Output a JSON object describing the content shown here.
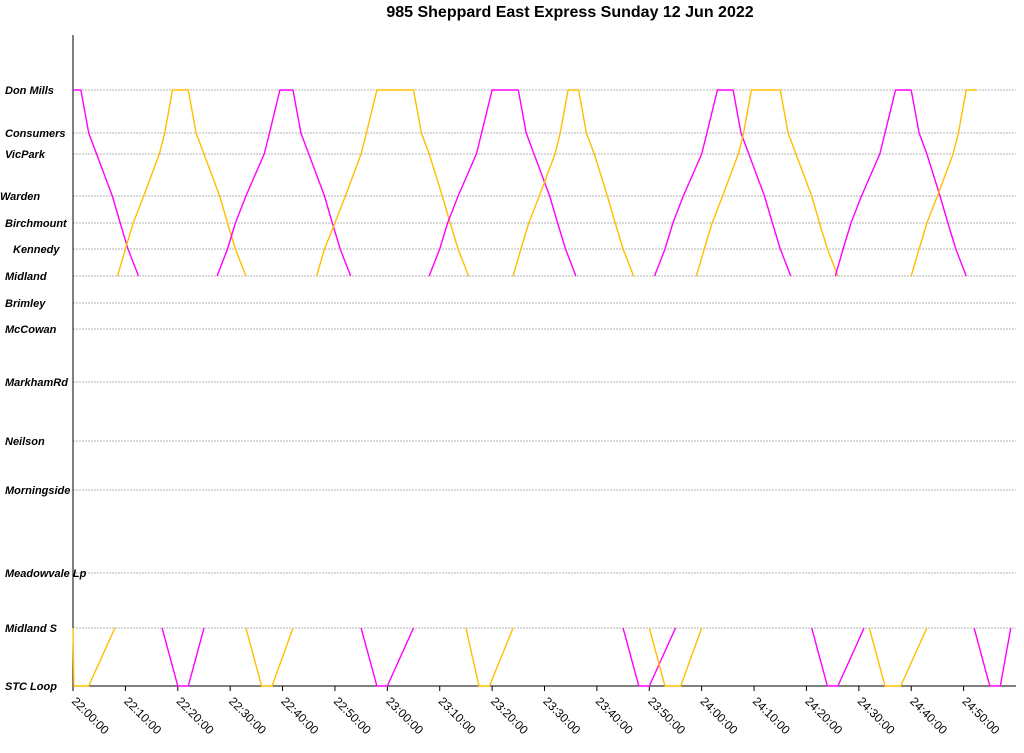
{
  "chart_data": {
    "type": "line",
    "title": "985 Sheppard East Express Sunday 12 Jun 2022",
    "xlabel": "",
    "ylabel": "",
    "x_range": [
      "22:00:00",
      "25:00:00"
    ],
    "x_ticks": [
      "22:00:00",
      "22:10:00",
      "22:20:00",
      "22:30:00",
      "22:40:00",
      "22:50:00",
      "23:00:00",
      "23:10:00",
      "23:20:00",
      "23:30:00",
      "23:40:00",
      "23:50:00",
      "24:00:00",
      "24:10:00",
      "24:20:00",
      "24:30:00",
      "24:40:00",
      "24:50:00"
    ],
    "stops": [
      "Don Mills",
      "Consumers",
      "VicPark",
      "Warden",
      "Birchmount",
      "Kennedy",
      "Midland",
      "Brimley",
      "McCowan",
      "MarkhamRd",
      "Neilson",
      "Morningside",
      "Meadowvale Lp",
      "Midland S",
      "STC Loop"
    ],
    "grid": true,
    "legend": "none",
    "colors": {
      "westbound": "#ff00ff",
      "eastbound": "#ffbf00"
    },
    "upper_segments": [
      {
        "color": "westbound",
        "points": [
          [
            "22:00:00",
            "Don Mills"
          ],
          [
            "22:01:30",
            "Don Mills"
          ],
          [
            "22:03:00",
            "Consumers"
          ],
          [
            "22:04:30",
            "VicPark"
          ],
          [
            "22:07:30",
            "Warden"
          ],
          [
            "22:09:00",
            "Birchmount"
          ],
          [
            "22:10:30",
            "Kennedy"
          ],
          [
            "22:12:30",
            "Midland"
          ]
        ]
      },
      {
        "color": "eastbound",
        "points": [
          [
            "22:08:30",
            "Midland"
          ],
          [
            "22:10:00",
            "Kennedy"
          ],
          [
            "22:11:30",
            "Birchmount"
          ],
          [
            "22:13:30",
            "Warden"
          ],
          [
            "22:16:30",
            "VicPark"
          ],
          [
            "22:17:30",
            "Consumers"
          ],
          [
            "22:19:00",
            "Don Mills"
          ],
          [
            "22:22:00",
            "Don Mills"
          ]
        ]
      },
      {
        "color": "eastbound",
        "points": [
          [
            "22:22:00",
            "Don Mills"
          ],
          [
            "22:23:30",
            "Consumers"
          ],
          [
            "22:25:00",
            "VicPark"
          ],
          [
            "22:28:00",
            "Warden"
          ],
          [
            "22:29:30",
            "Birchmount"
          ],
          [
            "22:31:00",
            "Kennedy"
          ],
          [
            "22:33:00",
            "Midland"
          ]
        ]
      },
      {
        "color": "westbound",
        "points": [
          [
            "22:27:30",
            "Midland"
          ],
          [
            "22:29:30",
            "Kennedy"
          ],
          [
            "22:31:00",
            "Birchmount"
          ],
          [
            "22:33:00",
            "Warden"
          ],
          [
            "22:36:30",
            "VicPark"
          ],
          [
            "22:37:30",
            "Consumers"
          ],
          [
            "22:39:30",
            "Don Mills"
          ],
          [
            "22:42:00",
            "Don Mills"
          ]
        ]
      },
      {
        "color": "westbound",
        "points": [
          [
            "22:42:00",
            "Don Mills"
          ],
          [
            "22:43:30",
            "Consumers"
          ],
          [
            "22:45:00",
            "VicPark"
          ],
          [
            "22:48:00",
            "Warden"
          ],
          [
            "22:49:30",
            "Birchmount"
          ],
          [
            "22:51:00",
            "Kennedy"
          ],
          [
            "22:53:00",
            "Midland"
          ]
        ]
      },
      {
        "color": "eastbound",
        "points": [
          [
            "22:46:30",
            "Midland"
          ],
          [
            "22:48:00",
            "Kennedy"
          ],
          [
            "22:50:00",
            "Birchmount"
          ],
          [
            "22:52:00",
            "Warden"
          ],
          [
            "22:55:00",
            "VicPark"
          ],
          [
            "22:56:00",
            "Consumers"
          ],
          [
            "22:58:00",
            "Don Mills"
          ],
          [
            "23:05:00",
            "Don Mills"
          ]
        ]
      },
      {
        "color": "eastbound",
        "points": [
          [
            "23:05:00",
            "Don Mills"
          ],
          [
            "23:06:30",
            "Consumers"
          ],
          [
            "23:08:00",
            "VicPark"
          ],
          [
            "23:10:30",
            "Warden"
          ],
          [
            "23:12:00",
            "Birchmount"
          ],
          [
            "23:13:30",
            "Kennedy"
          ],
          [
            "23:15:30",
            "Midland"
          ]
        ]
      },
      {
        "color": "westbound",
        "points": [
          [
            "23:08:00",
            "Midland"
          ],
          [
            "23:10:00",
            "Kennedy"
          ],
          [
            "23:11:30",
            "Birchmount"
          ],
          [
            "23:13:30",
            "Warden"
          ],
          [
            "23:17:00",
            "VicPark"
          ],
          [
            "23:18:00",
            "Consumers"
          ],
          [
            "23:20:00",
            "Don Mills"
          ],
          [
            "23:25:00",
            "Don Mills"
          ]
        ]
      },
      {
        "color": "westbound",
        "points": [
          [
            "23:25:00",
            "Don Mills"
          ],
          [
            "23:26:30",
            "Consumers"
          ],
          [
            "23:28:00",
            "VicPark"
          ],
          [
            "23:31:00",
            "Warden"
          ],
          [
            "23:32:30",
            "Birchmount"
          ],
          [
            "23:34:00",
            "Kennedy"
          ],
          [
            "23:36:00",
            "Midland"
          ]
        ]
      },
      {
        "color": "eastbound",
        "points": [
          [
            "23:24:00",
            "Midland"
          ],
          [
            "23:25:30",
            "Kennedy"
          ],
          [
            "23:27:00",
            "Birchmount"
          ],
          [
            "23:29:00",
            "Warden"
          ],
          [
            "23:32:00",
            "VicPark"
          ],
          [
            "23:33:00",
            "Consumers"
          ],
          [
            "23:34:30",
            "Don Mills"
          ],
          [
            "23:36:30",
            "Don Mills"
          ]
        ]
      },
      {
        "color": "eastbound",
        "points": [
          [
            "23:36:30",
            "Don Mills"
          ],
          [
            "23:38:00",
            "Consumers"
          ],
          [
            "23:39:30",
            "VicPark"
          ],
          [
            "23:42:00",
            "Warden"
          ],
          [
            "23:43:30",
            "Birchmount"
          ],
          [
            "23:45:00",
            "Kennedy"
          ],
          [
            "23:47:00",
            "Midland"
          ]
        ]
      },
      {
        "color": "westbound",
        "points": [
          [
            "23:51:00",
            "Midland"
          ],
          [
            "23:53:00",
            "Kennedy"
          ],
          [
            "23:54:30",
            "Birchmount"
          ],
          [
            "23:56:30",
            "Warden"
          ],
          [
            "24:00:00",
            "VicPark"
          ],
          [
            "24:01:00",
            "Consumers"
          ],
          [
            "24:03:00",
            "Don Mills"
          ],
          [
            "24:06:00",
            "Don Mills"
          ]
        ]
      },
      {
        "color": "westbound",
        "points": [
          [
            "24:06:00",
            "Don Mills"
          ],
          [
            "24:07:30",
            "Consumers"
          ],
          [
            "24:09:00",
            "VicPark"
          ],
          [
            "24:12:00",
            "Warden"
          ],
          [
            "24:13:30",
            "Birchmount"
          ],
          [
            "24:15:00",
            "Kennedy"
          ],
          [
            "24:17:00",
            "Midland"
          ]
        ]
      },
      {
        "color": "eastbound",
        "points": [
          [
            "23:59:00",
            "Midland"
          ],
          [
            "24:00:30",
            "Kennedy"
          ],
          [
            "24:02:00",
            "Birchmount"
          ],
          [
            "24:04:00",
            "Warden"
          ],
          [
            "24:07:00",
            "VicPark"
          ],
          [
            "24:08:00",
            "Consumers"
          ],
          [
            "24:09:30",
            "Don Mills"
          ],
          [
            "24:15:00",
            "Don Mills"
          ]
        ]
      },
      {
        "color": "eastbound",
        "points": [
          [
            "24:15:00",
            "Don Mills"
          ],
          [
            "24:16:30",
            "Consumers"
          ],
          [
            "24:18:00",
            "VicPark"
          ],
          [
            "24:21:00",
            "Warden"
          ],
          [
            "24:22:30",
            "Birchmount"
          ],
          [
            "24:24:00",
            "Kennedy"
          ],
          [
            "24:26:00",
            "Midland"
          ]
        ]
      },
      {
        "color": "westbound",
        "points": [
          [
            "24:25:30",
            "Midland"
          ],
          [
            "24:27:00",
            "Kennedy"
          ],
          [
            "24:28:30",
            "Birchmount"
          ],
          [
            "24:30:30",
            "Warden"
          ],
          [
            "24:34:00",
            "VicPark"
          ],
          [
            "24:35:00",
            "Consumers"
          ],
          [
            "24:37:00",
            "Don Mills"
          ],
          [
            "24:40:00",
            "Don Mills"
          ]
        ]
      },
      {
        "color": "westbound",
        "points": [
          [
            "24:40:00",
            "Don Mills"
          ],
          [
            "24:41:30",
            "Consumers"
          ],
          [
            "24:43:00",
            "VicPark"
          ],
          [
            "24:45:30",
            "Warden"
          ],
          [
            "24:47:00",
            "Birchmount"
          ],
          [
            "24:48:30",
            "Kennedy"
          ],
          [
            "24:50:30",
            "Midland"
          ]
        ]
      },
      {
        "color": "eastbound",
        "points": [
          [
            "24:40:00",
            "Midland"
          ],
          [
            "24:41:30",
            "Kennedy"
          ],
          [
            "24:43:00",
            "Birchmount"
          ],
          [
            "24:45:00",
            "Warden"
          ],
          [
            "24:48:00",
            "VicPark"
          ],
          [
            "24:49:00",
            "Consumers"
          ],
          [
            "24:50:30",
            "Don Mills"
          ],
          [
            "24:52:30",
            "Don Mills"
          ]
        ]
      }
    ],
    "lower_segments": [
      {
        "color": "eastbound",
        "points": [
          [
            "22:00:00",
            "Midland S"
          ],
          [
            "22:00:10",
            "STC Loop"
          ],
          [
            "22:03:00",
            "STC Loop"
          ],
          [
            "22:08:00",
            "Midland S"
          ]
        ]
      },
      {
        "color": "westbound",
        "points": [
          [
            "22:17:00",
            "Midland S"
          ],
          [
            "22:20:00",
            "STC Loop"
          ],
          [
            "22:22:00",
            "STC Loop"
          ],
          [
            "22:25:00",
            "Midland S"
          ]
        ]
      },
      {
        "color": "eastbound",
        "points": [
          [
            "22:33:00",
            "Midland S"
          ],
          [
            "22:36:00",
            "STC Loop"
          ],
          [
            "22:38:00",
            "STC Loop"
          ],
          [
            "22:42:00",
            "Midland S"
          ]
        ]
      },
      {
        "color": "westbound",
        "points": [
          [
            "22:55:00",
            "Midland S"
          ],
          [
            "22:58:00",
            "STC Loop"
          ],
          [
            "23:00:00",
            "STC Loop"
          ],
          [
            "23:05:00",
            "Midland S"
          ]
        ]
      },
      {
        "color": "eastbound",
        "points": [
          [
            "23:15:00",
            "Midland S"
          ],
          [
            "23:17:30",
            "STC Loop"
          ],
          [
            "23:19:30",
            "STC Loop"
          ],
          [
            "23:24:00",
            "Midland S"
          ]
        ]
      },
      {
        "color": "westbound",
        "points": [
          [
            "23:45:00",
            "Midland S"
          ],
          [
            "23:48:00",
            "STC Loop"
          ],
          [
            "23:50:00",
            "STC Loop"
          ],
          [
            "23:55:00",
            "Midland S"
          ]
        ]
      },
      {
        "color": "eastbound",
        "points": [
          [
            "23:50:00",
            "Midland S"
          ],
          [
            "23:53:00",
            "STC Loop"
          ],
          [
            "23:56:00",
            "STC Loop"
          ],
          [
            "24:00:00",
            "Midland S"
          ]
        ]
      },
      {
        "color": "westbound",
        "points": [
          [
            "24:21:00",
            "Midland S"
          ],
          [
            "24:24:00",
            "STC Loop"
          ],
          [
            "24:26:00",
            "STC Loop"
          ],
          [
            "24:31:00",
            "Midland S"
          ]
        ]
      },
      {
        "color": "eastbound",
        "points": [
          [
            "24:32:00",
            "Midland S"
          ],
          [
            "24:35:00",
            "STC Loop"
          ],
          [
            "24:38:00",
            "STC Loop"
          ],
          [
            "24:43:00",
            "Midland S"
          ]
        ]
      },
      {
        "color": "westbound",
        "points": [
          [
            "24:52:00",
            "Midland S"
          ],
          [
            "24:55:00",
            "STC Loop"
          ],
          [
            "24:57:00",
            "STC Loop"
          ],
          [
            "24:59:00",
            "Midland S"
          ]
        ]
      }
    ]
  }
}
